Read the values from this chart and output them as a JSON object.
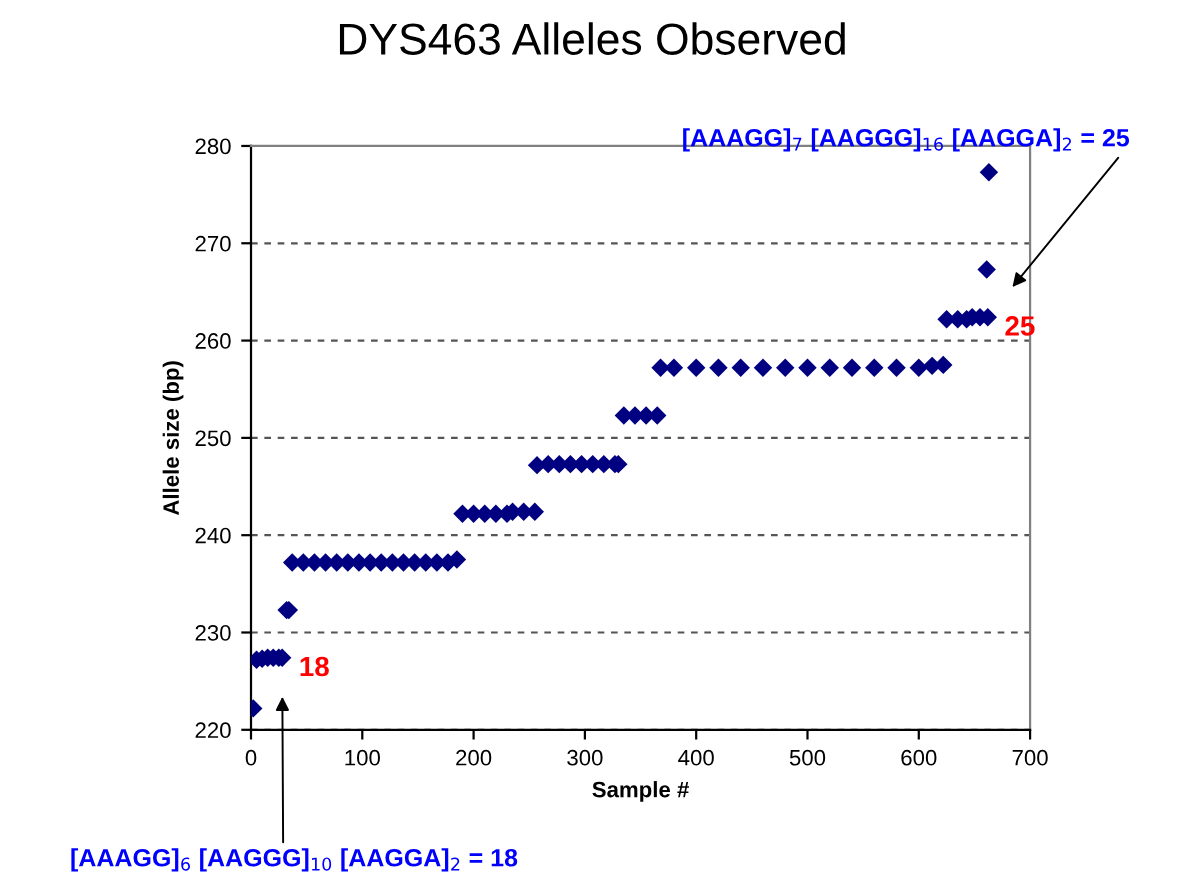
{
  "chart_data": {
    "type": "scatter",
    "title": "DYS463 Alleles Observed",
    "xlabel": "Sample #",
    "ylabel": "Allele size (bp)",
    "xlim": [
      0,
      700
    ],
    "xticks": [
      0,
      100,
      200,
      300,
      400,
      500,
      600,
      700
    ],
    "ylim": [
      220,
      280
    ],
    "yticks": [
      220,
      230,
      240,
      250,
      260,
      270,
      280
    ],
    "grid": "y",
    "marker": "diamond",
    "series": [
      {
        "color": "#000080",
        "x": [
          2,
          5,
          10,
          15,
          20,
          25,
          28,
          32,
          34,
          37,
          47,
          57,
          67,
          77,
          87,
          97,
          107,
          117,
          127,
          137,
          147,
          157,
          167,
          177,
          185,
          190,
          200,
          210,
          220,
          230,
          235,
          245,
          255,
          257,
          267,
          277,
          287,
          297,
          307,
          317,
          327,
          330,
          335,
          345,
          355,
          365,
          368,
          380,
          400,
          420,
          440,
          460,
          480,
          500,
          520,
          540,
          560,
          580,
          600,
          612,
          622,
          625,
          635,
          643,
          648,
          655,
          662,
          661,
          663
        ],
        "values": [
          222.2,
          227.2,
          227.3,
          227.4,
          227.4,
          227.4,
          227.4,
          232.3,
          232.3,
          237.2,
          237.2,
          237.2,
          237.2,
          237.2,
          237.2,
          237.2,
          237.2,
          237.2,
          237.2,
          237.2,
          237.2,
          237.2,
          237.2,
          237.2,
          237.5,
          242.2,
          242.2,
          242.2,
          242.2,
          242.2,
          242.4,
          242.4,
          242.4,
          247.2,
          247.3,
          247.3,
          247.3,
          247.3,
          247.3,
          247.3,
          247.3,
          247.3,
          252.3,
          252.3,
          252.3,
          252.3,
          257.2,
          257.2,
          257.2,
          257.2,
          257.2,
          257.2,
          257.2,
          257.2,
          257.2,
          257.2,
          257.2,
          257.2,
          257.2,
          257.4,
          257.5,
          262.2,
          262.2,
          262.2,
          262.4,
          262.4,
          262.4,
          267.3,
          277.3
        ]
      }
    ],
    "annotations": [
      {
        "text": "18",
        "x": 28,
        "y": 227.4
      },
      {
        "text": "25",
        "x": 662,
        "y": 262.4
      },
      "[AAAGG]$_{6}$ [AAGGG]$_{10}$ [AAGGA]$_{2}$ = 18",
      "[AAAGG]$_{7}$ [AAGGG]$_{16}$ [AAGGA]$_{2}$ = 25"
    ]
  }
}
